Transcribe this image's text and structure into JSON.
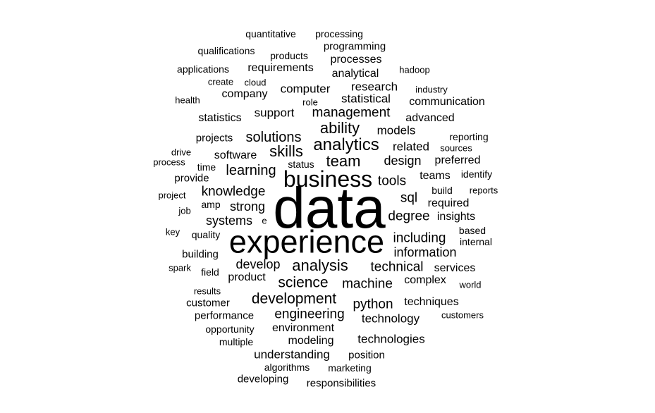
{
  "text_color": "#000000",
  "background": "#ffffff",
  "words": [
    {
      "text": "data",
      "weight": 100
    },
    {
      "text": "experience",
      "weight": 56
    },
    {
      "text": "business",
      "weight": 40
    },
    {
      "text": "analytics",
      "weight": 30
    },
    {
      "text": "team",
      "weight": 28
    },
    {
      "text": "skills",
      "weight": 27
    },
    {
      "text": "ability",
      "weight": 27
    },
    {
      "text": "analysis",
      "weight": 28
    },
    {
      "text": "development",
      "weight": 26
    },
    {
      "text": "science",
      "weight": 26
    },
    {
      "text": "learning",
      "weight": 25
    },
    {
      "text": "solutions",
      "weight": 25
    },
    {
      "text": "management",
      "weight": 23
    },
    {
      "text": "knowledge",
      "weight": 23
    },
    {
      "text": "including",
      "weight": 24
    },
    {
      "text": "machine",
      "weight": 23
    },
    {
      "text": "engineering",
      "weight": 23
    },
    {
      "text": "tools",
      "weight": 23
    },
    {
      "text": "technical",
      "weight": 23
    },
    {
      "text": "information",
      "weight": 22
    },
    {
      "text": "strong",
      "weight": 22
    },
    {
      "text": "systems",
      "weight": 22
    },
    {
      "text": "python",
      "weight": 23
    },
    {
      "text": "degree",
      "weight": 23
    },
    {
      "text": "sql",
      "weight": 23
    },
    {
      "text": "design",
      "weight": 22
    },
    {
      "text": "develop",
      "weight": 22
    },
    {
      "text": "related",
      "weight": 21
    },
    {
      "text": "technologies",
      "weight": 21
    },
    {
      "text": "technology",
      "weight": 21
    },
    {
      "text": "understanding",
      "weight": 21
    },
    {
      "text": "statistical",
      "weight": 21
    },
    {
      "text": "computer",
      "weight": 21
    },
    {
      "text": "research",
      "weight": 21
    },
    {
      "text": "models",
      "weight": 21
    },
    {
      "text": "support",
      "weight": 21
    },
    {
      "text": "complex",
      "weight": 20
    },
    {
      "text": "modeling",
      "weight": 20
    },
    {
      "text": "product",
      "weight": 20
    },
    {
      "text": "preferred",
      "weight": 20
    },
    {
      "text": "insights",
      "weight": 20
    },
    {
      "text": "required",
      "weight": 20
    },
    {
      "text": "advanced",
      "weight": 20
    },
    {
      "text": "requirements",
      "weight": 20
    },
    {
      "text": "analytical",
      "weight": 20
    },
    {
      "text": "processes",
      "weight": 20
    },
    {
      "text": "techniques",
      "weight": 20
    },
    {
      "text": "environment",
      "weight": 20
    },
    {
      "text": "services",
      "weight": 20
    },
    {
      "text": "company",
      "weight": 19
    },
    {
      "text": "communication",
      "weight": 19
    },
    {
      "text": "software",
      "weight": 19
    },
    {
      "text": "teams",
      "weight": 19
    },
    {
      "text": "statistics",
      "weight": 19
    },
    {
      "text": "position",
      "weight": 18
    },
    {
      "text": "customer",
      "weight": 18
    },
    {
      "text": "performance",
      "weight": 18
    },
    {
      "text": "programming",
      "weight": 18
    },
    {
      "text": "projects",
      "weight": 18
    },
    {
      "text": "provide",
      "weight": 18
    },
    {
      "text": "building",
      "weight": 18
    },
    {
      "text": "developing",
      "weight": 18
    },
    {
      "text": "responsibilities",
      "weight": 18
    },
    {
      "text": "build",
      "weight": 17
    },
    {
      "text": "opportunity",
      "weight": 17
    },
    {
      "text": "reporting",
      "weight": 17
    },
    {
      "text": "amp",
      "weight": 17
    },
    {
      "text": "quality",
      "weight": 17
    },
    {
      "text": "marketing",
      "weight": 17
    },
    {
      "text": "multiple",
      "weight": 17
    },
    {
      "text": "algorithms",
      "weight": 17
    },
    {
      "text": "qualifications",
      "weight": 17
    },
    {
      "text": "applications",
      "weight": 17
    },
    {
      "text": "processing",
      "weight": 17
    },
    {
      "text": "quantitative",
      "weight": 17
    },
    {
      "text": "products",
      "weight": 17
    },
    {
      "text": "identify",
      "weight": 17
    },
    {
      "text": "internal",
      "weight": 17
    },
    {
      "text": "based",
      "weight": 17
    },
    {
      "text": "status",
      "weight": 17
    },
    {
      "text": "time",
      "weight": 17
    },
    {
      "text": "field",
      "weight": 17
    },
    {
      "text": "world",
      "weight": 16
    },
    {
      "text": "customers",
      "weight": 16
    },
    {
      "text": "industry",
      "weight": 16
    },
    {
      "text": "reports",
      "weight": 16
    },
    {
      "text": "sources",
      "weight": 16
    },
    {
      "text": "hadoop",
      "weight": 16
    },
    {
      "text": "cloud",
      "weight": 16
    },
    {
      "text": "create",
      "weight": 16
    },
    {
      "text": "role",
      "weight": 16
    },
    {
      "text": "health",
      "weight": 16
    },
    {
      "text": "process",
      "weight": 16
    },
    {
      "text": "drive",
      "weight": 16
    },
    {
      "text": "project",
      "weight": 16
    },
    {
      "text": "job",
      "weight": 16
    },
    {
      "text": "key",
      "weight": 16
    },
    {
      "text": "spark",
      "weight": 16
    },
    {
      "text": "results",
      "weight": 16
    },
    {
      "text": "e",
      "weight": 16
    }
  ]
}
